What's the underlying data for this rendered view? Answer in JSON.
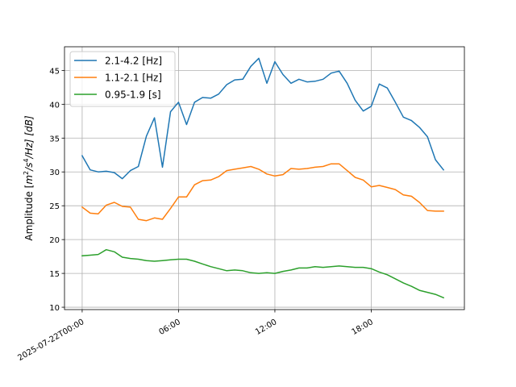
{
  "chart_data": {
    "type": "line",
    "xlabel": "",
    "ylabel": "Amplitude [m²/s⁴/Hz] [dB]",
    "ylabel_parts": {
      "pre": "Amplitude [",
      "m": "m",
      "sup2": "2",
      "slash_s": "/s",
      "sup4": "4",
      "tail": "/Hz] [dB]"
    },
    "ylim": [
      9.65,
      48.5
    ],
    "xlim_hours": [
      -1.1,
      23.8
    ],
    "x_ticks": [
      {
        "hour": 0,
        "label": "2025-07-22T00:00"
      },
      {
        "hour": 6,
        "label": "06:00"
      },
      {
        "hour": 12,
        "label": "12:00"
      },
      {
        "hour": 18,
        "label": "18:00"
      }
    ],
    "y_ticks": [
      10,
      15,
      20,
      25,
      30,
      35,
      40,
      45
    ],
    "grid": true,
    "legend_position": "top-left",
    "series": [
      {
        "name": "2.1-4.2 [Hz]",
        "color": "#1f77b4",
        "x": [
          0,
          0.5,
          1,
          1.5,
          2,
          2.5,
          3,
          3.5,
          4,
          4.5,
          5,
          5.5,
          6,
          6.5,
          7,
          7.5,
          8,
          8.5,
          9,
          9.5,
          10,
          10.5,
          11,
          11.5,
          12,
          12.5,
          13,
          13.5,
          14,
          14.5,
          15,
          15.5,
          16,
          16.5,
          17,
          17.5,
          18,
          18.5,
          19,
          19.5,
          20,
          20.5,
          21,
          21.5,
          22,
          22.5
        ],
        "values": [
          32.4,
          30.3,
          30.0,
          30.1,
          29.9,
          29.0,
          30.2,
          30.8,
          35.3,
          38.0,
          30.7,
          38.9,
          40.3,
          37.0,
          40.3,
          41.0,
          40.9,
          41.5,
          42.9,
          43.6,
          43.7,
          45.6,
          46.8,
          43.1,
          46.3,
          44.4,
          43.1,
          43.7,
          43.3,
          43.4,
          43.7,
          44.6,
          44.9,
          43.1,
          40.6,
          39.0,
          39.7,
          43.0,
          42.4,
          40.3,
          38.1,
          37.6,
          36.6,
          35.2,
          31.8,
          30.3
        ]
      },
      {
        "name": "1.1-2.1 [Hz]",
        "color": "#ff7f0e",
        "x": [
          0,
          0.5,
          1,
          1.5,
          2,
          2.5,
          3,
          3.5,
          4,
          4.5,
          5,
          5.5,
          6,
          6.5,
          7,
          7.5,
          8,
          8.5,
          9,
          9.5,
          10,
          10.5,
          11,
          11.5,
          12,
          12.5,
          13,
          13.5,
          14,
          14.5,
          15,
          15.5,
          16,
          16.5,
          17,
          17.5,
          18,
          18.5,
          19,
          19.5,
          20,
          20.5,
          21,
          21.5,
          22,
          22.5
        ],
        "values": [
          24.8,
          23.9,
          23.8,
          25.1,
          25.5,
          24.9,
          24.8,
          23.0,
          22.8,
          23.2,
          23.0,
          24.6,
          26.3,
          26.3,
          28.1,
          28.7,
          28.8,
          29.3,
          30.2,
          30.4,
          30.6,
          30.8,
          30.4,
          29.7,
          29.4,
          29.6,
          30.5,
          30.4,
          30.5,
          30.7,
          30.8,
          31.2,
          31.2,
          30.2,
          29.2,
          28.8,
          27.8,
          28.0,
          27.7,
          27.4,
          26.6,
          26.4,
          25.5,
          24.3,
          24.2,
          24.2
        ]
      },
      {
        "name": "0.95-1.9 [s]",
        "color": "#2ca02c",
        "x": [
          0,
          0.5,
          1,
          1.5,
          2,
          2.5,
          3,
          3.5,
          4,
          4.5,
          5,
          5.5,
          6,
          6.5,
          7,
          7.5,
          8,
          8.5,
          9,
          9.5,
          10,
          10.5,
          11,
          11.5,
          12,
          12.5,
          13,
          13.5,
          14,
          14.5,
          15,
          15.5,
          16,
          16.5,
          17,
          17.5,
          18,
          18.5,
          19,
          19.5,
          20,
          20.5,
          21,
          21.5,
          22,
          22.5
        ],
        "values": [
          17.6,
          17.7,
          17.8,
          18.5,
          18.2,
          17.4,
          17.2,
          17.1,
          16.9,
          16.8,
          16.9,
          17.0,
          17.1,
          17.1,
          16.8,
          16.4,
          16.0,
          15.7,
          15.4,
          15.5,
          15.4,
          15.1,
          15.0,
          15.1,
          15.0,
          15.3,
          15.5,
          15.8,
          15.8,
          16.0,
          15.9,
          16.0,
          16.1,
          16.0,
          15.9,
          15.9,
          15.7,
          15.2,
          14.8,
          14.2,
          13.6,
          13.1,
          12.5,
          12.2,
          11.9,
          11.4
        ]
      }
    ]
  }
}
